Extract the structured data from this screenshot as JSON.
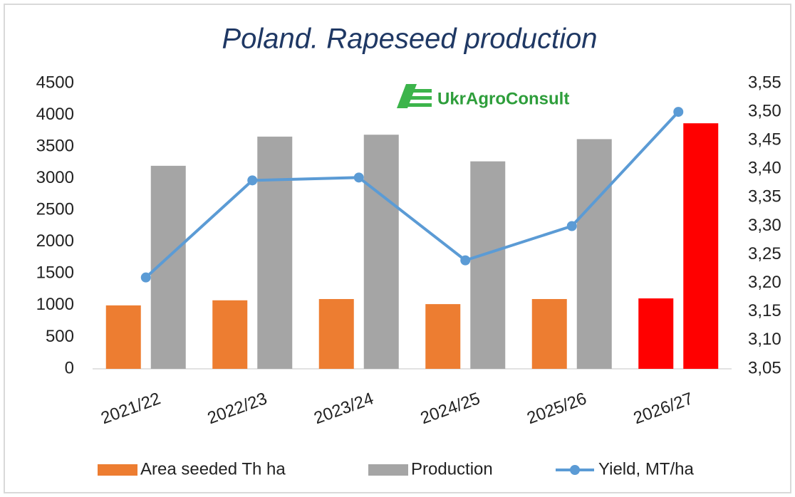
{
  "chart_data": {
    "type": "bar",
    "title": "Poland. Rapeseed production",
    "logo": "UkrAgroConsult",
    "categories": [
      "2021/22",
      "2022/23",
      "2023/24",
      "2024/25",
      "2025/26",
      "2026/27"
    ],
    "series": [
      {
        "name": "Area seeded Th ha",
        "color": "#ed7d31",
        "colors": [
          "#ed7d31",
          "#ed7d31",
          "#ed7d31",
          "#ed7d31",
          "#ed7d31",
          "#ff0000"
        ],
        "values": [
          1000,
          1080,
          1100,
          1020,
          1100,
          1110
        ]
      },
      {
        "name": "Production",
        "color": "#a5a5a5",
        "colors": [
          "#a5a5a5",
          "#a5a5a5",
          "#a5a5a5",
          "#a5a5a5",
          "#a5a5a5",
          "#ff0000"
        ],
        "values": [
          3200,
          3660,
          3690,
          3270,
          3620,
          3870
        ]
      },
      {
        "name": "Yield, MT/ha",
        "type": "line",
        "axis": "y2",
        "color": "#5b9bd5",
        "values": [
          3.21,
          3.38,
          3.385,
          3.24,
          3.3,
          3.5
        ]
      }
    ],
    "ylim": [
      0,
      4500
    ],
    "yticks": [
      0,
      500,
      1000,
      1500,
      2000,
      2500,
      3000,
      3500,
      4000,
      4500
    ],
    "y2lim": [
      3.05,
      3.55
    ],
    "y2ticks": [
      {
        "value": 3.05,
        "label": "3,05"
      },
      {
        "value": 3.1,
        "label": "3,10"
      },
      {
        "value": 3.15,
        "label": "3,15"
      },
      {
        "value": 3.2,
        "label": "3,20"
      },
      {
        "value": 3.25,
        "label": "3,25"
      },
      {
        "value": 3.3,
        "label": "3,30"
      },
      {
        "value": 3.35,
        "label": "3,35"
      },
      {
        "value": 3.4,
        "label": "3,40"
      },
      {
        "value": 3.45,
        "label": "3,45"
      },
      {
        "value": 3.5,
        "label": "3,50"
      },
      {
        "value": 3.55,
        "label": "3,55"
      }
    ],
    "legend": "bottom"
  }
}
